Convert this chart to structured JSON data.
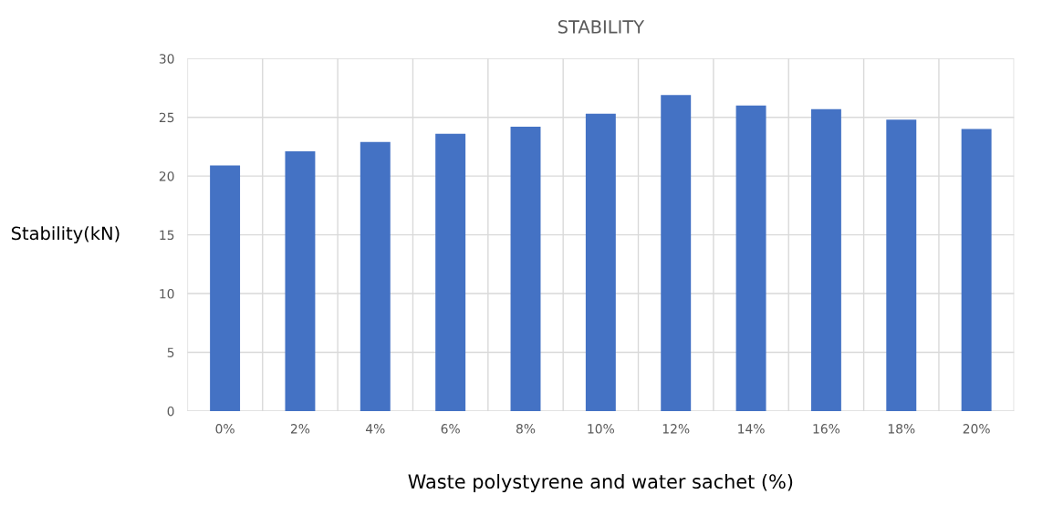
{
  "chart_data": {
    "type": "bar",
    "title": "STABILITY",
    "xlabel": "Waste polystyrene and water sachet (%)",
    "ylabel": "Stability(kN)",
    "categories": [
      "0%",
      "2%",
      "4%",
      "6%",
      "8%",
      "10%",
      "12%",
      "14%",
      "16%",
      "18%",
      "20%"
    ],
    "values": [
      20.9,
      22.1,
      22.9,
      23.6,
      24.2,
      25.3,
      26.9,
      26.0,
      25.7,
      24.8,
      24.0
    ],
    "color": "#4472c4",
    "ylim": [
      0,
      30
    ],
    "yticks": [
      0,
      5,
      10,
      15,
      20,
      25,
      30
    ],
    "grid": true,
    "legend": false
  }
}
